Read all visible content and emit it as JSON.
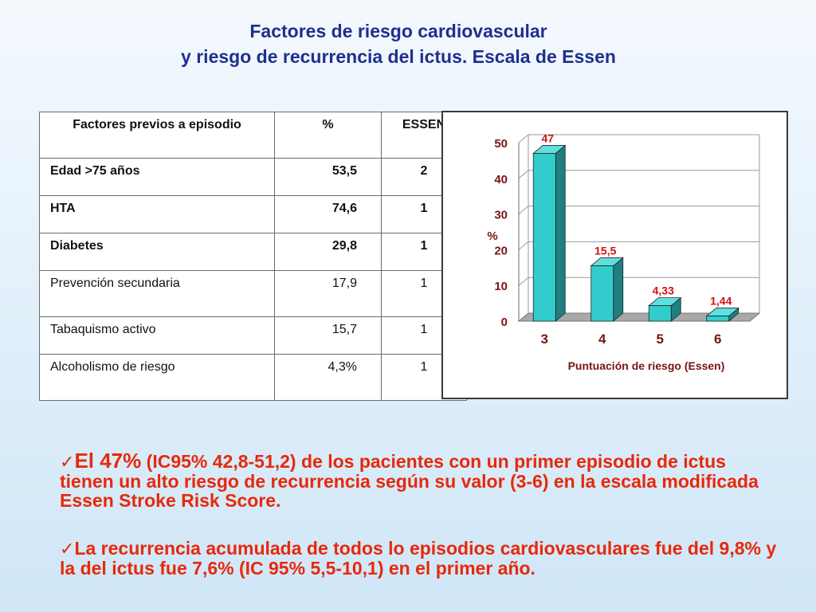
{
  "slide": {
    "title_line1": "Factores de riesgo cardiovascular",
    "title_line2": "y riesgo de recurrencia del ictus. Escala de Essen"
  },
  "table": {
    "headers": [
      "Factores previos a episodio",
      "%",
      "ESSEN"
    ],
    "rows": [
      {
        "factor": "Edad >75 años",
        "percent": "53,5",
        "essen": "2"
      },
      {
        "factor": "HTA",
        "percent": "74,6",
        "essen": "1"
      },
      {
        "factor": "Diabetes",
        "percent": "29,8",
        "essen": "1"
      },
      {
        "factor": "Prevención secundaria",
        "percent": "17,9",
        "essen": "1"
      },
      {
        "factor": "Tabaquismo activo",
        "percent": "15,7",
        "essen": "1"
      },
      {
        "factor": "Alcoholismo de riesgo",
        "percent": "4,3%",
        "essen": "1"
      }
    ]
  },
  "chart_data": {
    "type": "bar",
    "categories": [
      "3",
      "4",
      "5",
      "6"
    ],
    "values": [
      47,
      15.5,
      4.33,
      1.44
    ],
    "data_labels": [
      "47",
      "15,5",
      "4,33",
      "1,44"
    ],
    "xlabel": "Puntuación de riesgo (Essen)",
    "ylabel": "%",
    "ylim": [
      0,
      50
    ],
    "yticks": [
      0,
      10,
      20,
      30,
      40,
      50
    ],
    "grid": true,
    "style": "3d",
    "bar_color": "#33cccc",
    "label_color": "#d01010"
  },
  "bullets": {
    "check_icon": "checkmark-icon",
    "b1_emph": "El 47%",
    "b1_rest": " (IC95% 42,8-51,2) de los pacientes con un primer episodio de ictus tienen un alto riesgo de  recurrencia según su valor (3-6) en la escala modificada Essen Stroke Risk Score.",
    "b2_text": "La recurrencia acumulada de todos lo episodios cardiovasculares fue del 9,8% y la del ictus fue 7,6% (IC 95% 5,5-10,1) en el primer año."
  }
}
